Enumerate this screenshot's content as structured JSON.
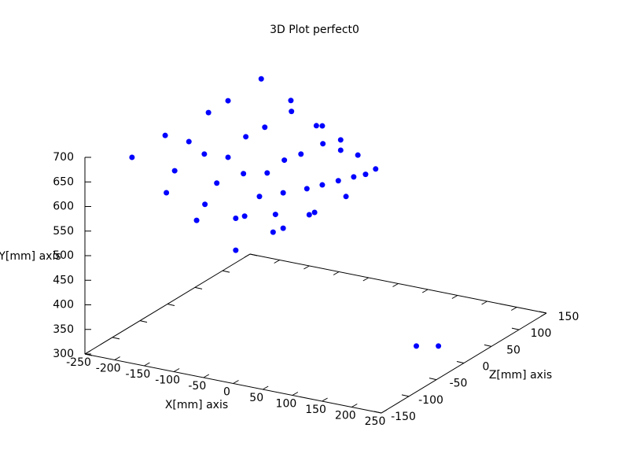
{
  "chart_data": {
    "type": "scatter3d",
    "title": "3D Plot perfect0",
    "xlabel": "X[mm] axis",
    "ylabel": "Y[mm] axis",
    "zlabel": "Z[mm] axis",
    "color": "#0000ff",
    "xlim": [
      -250,
      250
    ],
    "xticks": [
      -250,
      -200,
      -150,
      -100,
      -50,
      0,
      50,
      100,
      150,
      200,
      250
    ],
    "ylim": [
      300,
      700
    ],
    "yticks": [
      300,
      350,
      400,
      450,
      500,
      550,
      600,
      650,
      700
    ],
    "zlim": [
      -150,
      150
    ],
    "zticks": [
      -150,
      -100,
      -50,
      0,
      50,
      100,
      150
    ],
    "x": [
      -217,
      -145,
      -74,
      -2,
      -161,
      -95,
      -29,
      38,
      -121,
      -55,
      11,
      78,
      -88,
      -25,
      40,
      104,
      -55,
      7,
      68,
      131,
      1,
      52,
      105,
      157,
      51,
      94,
      135,
      177,
      104,
      135,
      164,
      194,
      -159,
      -94,
      -27,
      38,
      -108,
      -42,
      25,
      91,
      -42,
      21,
      82,
      144,
      154,
      182
    ],
    "y": [
      674,
      664,
      656,
      646,
      732,
      710,
      686,
      663,
      729,
      713,
      697,
      681,
      796,
      762,
      730,
      695,
      828,
      789,
      749,
      710,
      886,
      832,
      779,
      724,
      854,
      813,
      773,
      734,
      815,
      794,
      770,
      749,
      616,
      608,
      600,
      591,
      572,
      592,
      616,
      636,
      527,
      579,
      629,
      681,
      300,
      300
    ],
    "z": [
      -100,
      -100,
      -100,
      -100,
      -100,
      -100,
      -100,
      -100,
      -100,
      -100,
      -100,
      -100,
      -100,
      -100,
      -100,
      -100,
      -100,
      -100,
      -100,
      -100,
      -100,
      -100,
      -100,
      -100,
      -100,
      -100,
      -100,
      -100,
      -100,
      -100,
      -100,
      -100,
      -100,
      -100,
      -100,
      -100,
      -100,
      -100,
      -100,
      -100,
      -100,
      -100,
      -100,
      -100,
      17,
      27
    ]
  }
}
